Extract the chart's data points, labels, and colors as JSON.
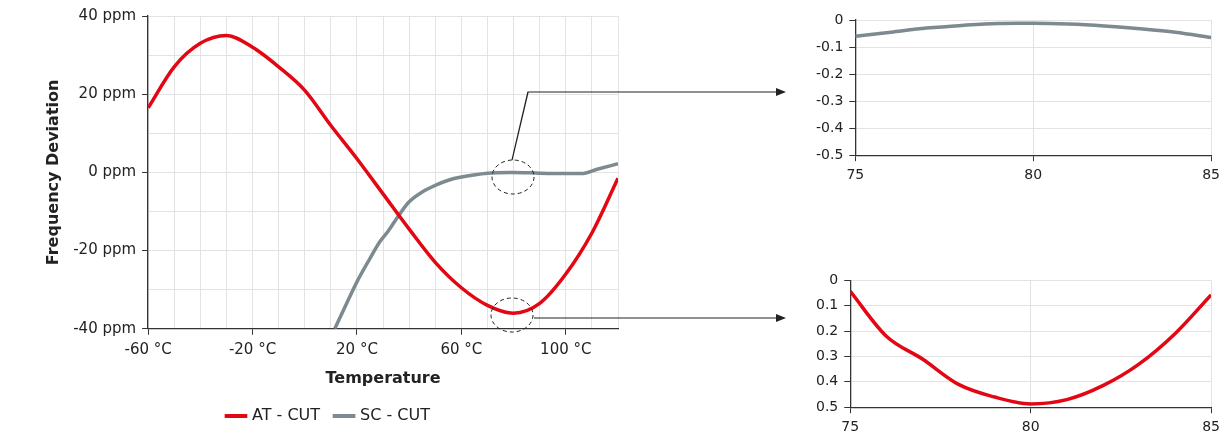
{
  "chart_data": [
    {
      "type": "line",
      "xlabel": "Temperature",
      "ylabel": "Frequency Deviation",
      "xlim": [
        -60,
        120
      ],
      "ylim": [
        -40,
        40
      ],
      "xticks": [
        {
          "value": -60,
          "label": "-60 °C"
        },
        {
          "value": -50,
          "label": null
        },
        {
          "value": -40,
          "label": null
        },
        {
          "value": -30,
          "label": null
        },
        {
          "value": -20,
          "label": "-20 °C"
        },
        {
          "value": -10,
          "label": null
        },
        {
          "value": 0,
          "label": null
        },
        {
          "value": 10,
          "label": null
        },
        {
          "value": 20,
          "label": "20 °C"
        },
        {
          "value": 30,
          "label": null
        },
        {
          "value": 40,
          "label": null
        },
        {
          "value": 50,
          "label": null
        },
        {
          "value": 60,
          "label": "60 °C"
        },
        {
          "value": 70,
          "label": null
        },
        {
          "value": 80,
          "label": null
        },
        {
          "value": 90,
          "label": null
        },
        {
          "value": 100,
          "label": "100 °C"
        },
        {
          "value": 110,
          "label": null
        },
        {
          "value": 120,
          "label": null
        }
      ],
      "yticks": [
        {
          "value": -40,
          "label": "-40 ppm"
        },
        {
          "value": -30,
          "label": null
        },
        {
          "value": -20,
          "label": "-20 ppm"
        },
        {
          "value": -10,
          "label": null
        },
        {
          "value": 0,
          "label": "0 ppm"
        },
        {
          "value": 10,
          "label": null
        },
        {
          "value": 20,
          "label": "20 ppm"
        },
        {
          "value": 30,
          "label": null
        },
        {
          "value": 40,
          "label": "40 ppm"
        }
      ],
      "grid": true,
      "legend": "bottom",
      "series": [
        {
          "name": "AT - CUT",
          "color": "#e30613",
          "x": [
            -60,
            -50,
            -40,
            -30,
            -20,
            -10,
            0,
            10,
            20,
            30,
            40,
            50,
            60,
            70,
            80,
            90,
            100,
            110,
            120
          ],
          "values": [
            16.5,
            27,
            33,
            35,
            32,
            27,
            21,
            12,
            3.5,
            -5.5,
            -14.5,
            -23,
            -29.5,
            -34,
            -36,
            -33.5,
            -26,
            -15.5,
            -1.5
          ]
        },
        {
          "name": "SC - CUT",
          "color": "#7d8a8f",
          "x": [
            11.5,
            15,
            20,
            25,
            28.5,
            32,
            36,
            40,
            45,
            50,
            55,
            60,
            70,
            80,
            90,
            100,
            106,
            112,
            120
          ],
          "values": [
            -40,
            -35,
            -28,
            -22,
            -18,
            -15,
            -11,
            -7.5,
            -5,
            -3.3,
            -2,
            -1.2,
            -0.2,
            0,
            -0.2,
            -0.3,
            -0.3,
            0.8,
            2.2
          ]
        }
      ]
    },
    {
      "type": "line",
      "xlim": [
        75,
        85
      ],
      "ylim": [
        -0.5,
        0
      ],
      "xticks": [
        75,
        80,
        85
      ],
      "yticks": [
        -0.5,
        -0.4,
        -0.3,
        -0.2,
        -0.1,
        0
      ],
      "grid": true,
      "x": [
        75,
        76,
        77,
        78,
        79,
        80,
        81,
        82,
        83,
        84,
        85
      ],
      "series": [
        {
          "color": "#7d8a8f",
          "values": [
            -0.06,
            -0.045,
            -0.03,
            -0.02,
            -0.013,
            -0.012,
            -0.015,
            -0.022,
            -0.032,
            -0.045,
            -0.065
          ]
        }
      ]
    },
    {
      "type": "line",
      "xlim": [
        75,
        85
      ],
      "ylim": [
        0.5,
        0
      ],
      "xticks": [
        75,
        80,
        85
      ],
      "yticks": [
        0,
        0.1,
        0.2,
        0.3,
        0.4,
        0.5
      ],
      "grid": true,
      "x": [
        75,
        76,
        77,
        78,
        79,
        80,
        81,
        82,
        83,
        84,
        85
      ],
      "series": [
        {
          "color": "#e30613",
          "values": [
            0.043,
            0.22,
            0.31,
            0.41,
            0.46,
            0.487,
            0.47,
            0.415,
            0.33,
            0.21,
            0.057
          ]
        }
      ]
    }
  ]
}
